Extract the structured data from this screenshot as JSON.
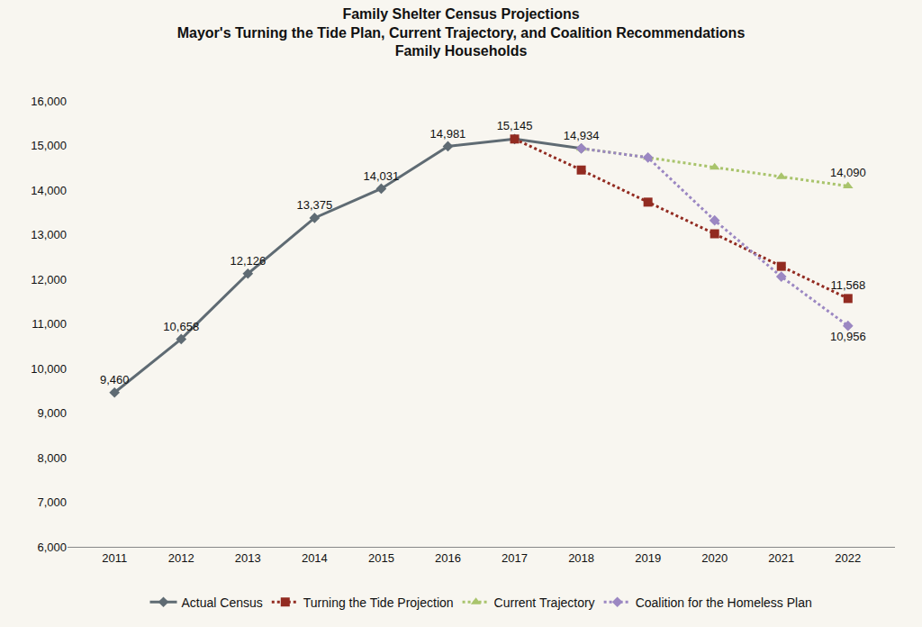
{
  "chart_data": {
    "type": "line",
    "title": "Family Shelter Census Projections",
    "subtitle": [
      "Mayor's Turning the Tide Plan, Current Trajectory, and Coalition Recommendations",
      "Family Households"
    ],
    "categories": [
      "2011",
      "2012",
      "2013",
      "2014",
      "2015",
      "2016",
      "2017",
      "2018",
      "2019",
      "2020",
      "2021",
      "2022"
    ],
    "series": [
      {
        "name": "Actual Census",
        "color": "#5f6b73",
        "marker": "diamond",
        "line_style": "solid",
        "values": [
          9460,
          10658,
          12126,
          13375,
          14031,
          14981,
          15145,
          14934,
          null,
          null,
          null,
          null
        ],
        "value_labels": [
          "9,460",
          "10,658",
          "12,126",
          "13,375",
          "14,031",
          "14,981",
          "15,145",
          "14,934",
          null,
          null,
          null,
          null
        ]
      },
      {
        "name": "Turning the Tide Projection",
        "color": "#922b21",
        "marker": "square",
        "line_style": "dot",
        "values": [
          null,
          null,
          null,
          null,
          null,
          null,
          15145,
          14450,
          13730,
          13020,
          12290,
          11568
        ],
        "value_labels": [
          null,
          null,
          null,
          null,
          null,
          null,
          null,
          null,
          null,
          null,
          null,
          "11,568"
        ]
      },
      {
        "name": "Current Trajectory",
        "color": "#a9c46c",
        "marker": "triangle-up",
        "line_style": "dot",
        "values": [
          null,
          null,
          null,
          null,
          null,
          null,
          null,
          14934,
          14730,
          14510,
          14300,
          14090
        ],
        "value_labels": [
          null,
          null,
          null,
          null,
          null,
          null,
          null,
          null,
          null,
          null,
          null,
          "14,090"
        ]
      },
      {
        "name": "Coalition for the Homeless Plan",
        "color": "#9b87c2",
        "marker": "diamond",
        "line_style": "dot",
        "values": [
          null,
          null,
          null,
          null,
          null,
          null,
          null,
          14934,
          14730,
          13320,
          12060,
          10956
        ],
        "value_labels": [
          null,
          null,
          null,
          null,
          null,
          null,
          null,
          null,
          null,
          null,
          null,
          "10,956"
        ]
      }
    ],
    "ylim": [
      6000,
      16000
    ],
    "yticks": [
      {
        "value": 6000,
        "label": "6,000"
      },
      {
        "value": 7000,
        "label": "7,000"
      },
      {
        "value": 8000,
        "label": "8,000"
      },
      {
        "value": 9000,
        "label": "9,000"
      },
      {
        "value": 10000,
        "label": "10,000"
      },
      {
        "value": 11000,
        "label": "11,000"
      },
      {
        "value": 12000,
        "label": "12,000"
      },
      {
        "value": 13000,
        "label": "13,000"
      },
      {
        "value": 14000,
        "label": "14,000"
      },
      {
        "value": 15000,
        "label": "15,000"
      },
      {
        "value": 16000,
        "label": "16,000"
      }
    ],
    "grid": false,
    "legend": "bottom",
    "data_labels": true
  }
}
